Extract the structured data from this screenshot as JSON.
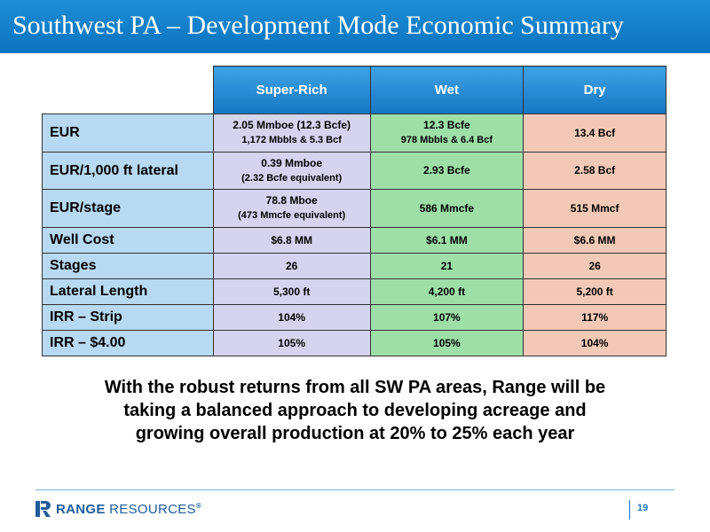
{
  "title": "Southwest PA – Development Mode Economic Summary",
  "table": {
    "columns": [
      "Super-Rich",
      "Wet",
      "Dry"
    ],
    "rows": [
      {
        "label": "EUR",
        "super_rich": [
          "2.05 Mmboe (12.3 Bcfe)",
          "1,172 Mbbls & 5.3 Bcf"
        ],
        "wet": [
          "12.3 Bcfe",
          "978 Mbbls & 6.4 Bcf"
        ],
        "dry": [
          "13.4 Bcf"
        ]
      },
      {
        "label": "EUR/1,000 ft lateral",
        "super_rich": [
          "0.39 Mmboe",
          "(2.32 Bcfe equivalent)"
        ],
        "wet": [
          "2.93 Bcfe"
        ],
        "dry": [
          "2.58 Bcf"
        ]
      },
      {
        "label": "EUR/stage",
        "super_rich": [
          "78.8 Mboe",
          "(473 Mmcfe equivalent)"
        ],
        "wet": [
          "586 Mmcfe"
        ],
        "dry": [
          "515 Mmcf"
        ]
      },
      {
        "label": "Well Cost",
        "super_rich": [
          "$6.8 MM"
        ],
        "wet": [
          "$6.1 MM"
        ],
        "dry": [
          "$6.6 MM"
        ]
      },
      {
        "label": "Stages",
        "super_rich": [
          "26"
        ],
        "wet": [
          "21"
        ],
        "dry": [
          "26"
        ]
      },
      {
        "label": "Lateral Length",
        "super_rich": [
          "5,300 ft"
        ],
        "wet": [
          "4,200 ft"
        ],
        "dry": [
          "5,200 ft"
        ]
      },
      {
        "label": "IRR – Strip",
        "super_rich": [
          "104%"
        ],
        "wet": [
          "107%"
        ],
        "dry": [
          "117%"
        ]
      },
      {
        "label": "IRR – $4.00",
        "super_rich": [
          "105%"
        ],
        "wet": [
          "105%"
        ],
        "dry": [
          "104%"
        ]
      }
    ]
  },
  "closing_text": [
    "With the robust returns from all SW PA areas, Range will be",
    "taking a balanced approach to developing acreage and",
    "growing overall production at 20% to 25% each year"
  ],
  "footer": {
    "logo_bold": "RANGE",
    "logo_thin": "RESOURCES",
    "logo_mark": "®",
    "page_number": "19"
  },
  "colors": {
    "title_bar": "#0a73bf",
    "header_cells": "#1677c4",
    "row_labels": "#b7d9f2",
    "super_rich": "#d6d3ef",
    "wet": "#9edfa8",
    "dry": "#f2c9b6"
  },
  "icons": {
    "logo": "range-resources-logo-icon"
  }
}
